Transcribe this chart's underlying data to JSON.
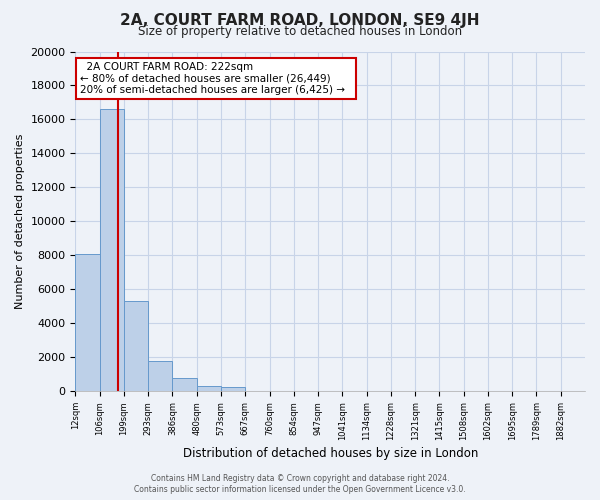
{
  "title": "2A, COURT FARM ROAD, LONDON, SE9 4JH",
  "subtitle": "Size of property relative to detached houses in London",
  "xlabel": "Distribution of detached houses by size in London",
  "ylabel": "Number of detached properties",
  "bar_color": "#bdd0e8",
  "bar_edge_color": "#6699cc",
  "grid_color": "#c8d4e8",
  "vline_color": "#cc0000",
  "vline_x": 1.77,
  "bin_labels": [
    "12sqm",
    "106sqm",
    "199sqm",
    "293sqm",
    "386sqm",
    "480sqm",
    "573sqm",
    "667sqm",
    "760sqm",
    "854sqm",
    "947sqm",
    "1041sqm",
    "1134sqm",
    "1228sqm",
    "1321sqm",
    "1415sqm",
    "1508sqm",
    "1602sqm",
    "1695sqm",
    "1789sqm",
    "1882sqm"
  ],
  "bar_heights": [
    8100,
    16600,
    5300,
    1750,
    800,
    300,
    270,
    0,
    0,
    0,
    0,
    0,
    0,
    0,
    0,
    0,
    0,
    0,
    0,
    0,
    0
  ],
  "ylim": [
    0,
    20000
  ],
  "yticks": [
    0,
    2000,
    4000,
    6000,
    8000,
    10000,
    12000,
    14000,
    16000,
    18000,
    20000
  ],
  "annotation_title": "2A COURT FARM ROAD: 222sqm",
  "annotation_line1": "← 80% of detached houses are smaller (26,449)",
  "annotation_line2": "20% of semi-detached houses are larger (6,425) →",
  "annotation_box_color": "#ffffff",
  "annotation_box_edge": "#cc0000",
  "footer_line1": "Contains HM Land Registry data © Crown copyright and database right 2024.",
  "footer_line2": "Contains public sector information licensed under the Open Government Licence v3.0.",
  "background_color": "#eef2f8"
}
